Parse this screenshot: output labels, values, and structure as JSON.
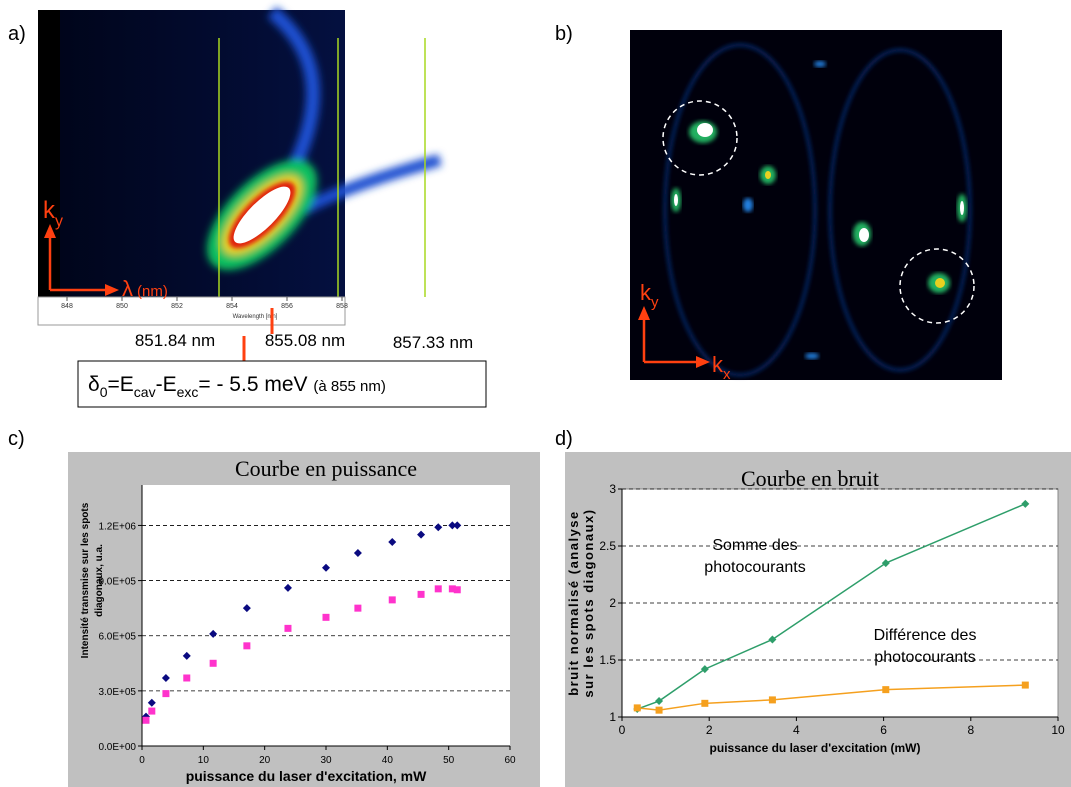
{
  "panel_labels": [
    "a)",
    "b)",
    "c)",
    "d)"
  ],
  "spectrum": {
    "k": "k",
    "k_sub": "y",
    "lambda": "λ",
    "unit": "(nm)",
    "ticks": [
      848,
      850,
      852,
      854,
      856,
      858
    ],
    "axis_title": "Wavelength [nm]",
    "markers": [
      "851.84 nm",
      "855.08 nm",
      "857.33 nm"
    ],
    "detuning": {
      "delta": "δ",
      "delta_sub": "0",
      "e_cav": "=E",
      "cav": "cav",
      "e_exc": "-E",
      "exc": "exc",
      "value": "= - 5.5 meV ",
      "note": "(à 855 nm)"
    }
  },
  "far_field": {
    "ky": "k",
    "ky_sub": "y",
    "kx": "k",
    "kx_sub": "x"
  },
  "chart_data": [
    {
      "type": "scatter",
      "title": "Courbe en puissance",
      "xlabel": "puissance du laser d'excitation, mW",
      "ylabel": [
        "Intensité transmise sur les spots",
        "diagonaux, u.a."
      ],
      "x": [
        0.65,
        1.6,
        3.9,
        7.3,
        11.6,
        17.1,
        23.8,
        30.0,
        35.2,
        40.8,
        45.5,
        48.3,
        50.6,
        51.4
      ],
      "series": [
        {
          "color": "#0a0a80",
          "marker": "diamond",
          "values": [
            160000,
            235000,
            370000,
            490000,
            610000,
            750000,
            860000,
            970000,
            1050000,
            1110000,
            1150000,
            1190000,
            1200000,
            1200000
          ]
        },
        {
          "color": "#ff33cc",
          "marker": "square",
          "values": [
            140000,
            190000,
            285000,
            370000,
            450000,
            545000,
            640000,
            700000,
            750000,
            795000,
            825000,
            855000,
            855000,
            850000
          ]
        }
      ],
      "xlim": [
        0,
        60
      ],
      "xticks": [
        0,
        10,
        20,
        30,
        40,
        50,
        60
      ],
      "ylim": [
        0,
        1420000
      ],
      "yticks": [
        {
          "value": 0,
          "label": "0.0E+00"
        },
        {
          "value": 300000,
          "label": "3.0E+05"
        },
        {
          "value": 600000,
          "label": "6.0E+05"
        },
        {
          "value": 900000,
          "label": "9.0E+05"
        },
        {
          "value": 1200000,
          "label": "1.2E+06"
        }
      ],
      "grid": true
    },
    {
      "type": "line",
      "title": "Courbe en bruit",
      "xlabel": "puissance du laser d'excitation (mW)",
      "ylabel": [
        "bruit normalisé (analyse",
        "sur les spots diagonaux)"
      ],
      "x": [
        0.35,
        0.85,
        1.9,
        3.45,
        6.05,
        9.25
      ],
      "series": [
        {
          "name": "Somme des photocourants",
          "color": "#2e9e6a",
          "marker": "diamond",
          "values": [
            1.07,
            1.14,
            1.42,
            1.68,
            2.35,
            2.87
          ]
        },
        {
          "name": "Différence des photocourants",
          "color": "#f5a01e",
          "marker": "square",
          "values": [
            1.08,
            1.06,
            1.12,
            1.15,
            1.24,
            1.28
          ]
        }
      ],
      "xlim": [
        0,
        10
      ],
      "xticks": [
        0,
        2,
        4,
        6,
        8,
        10
      ],
      "ylim": [
        1,
        3
      ],
      "yticks": [
        1,
        1.5,
        2,
        2.5,
        3
      ],
      "grid": true
    }
  ]
}
